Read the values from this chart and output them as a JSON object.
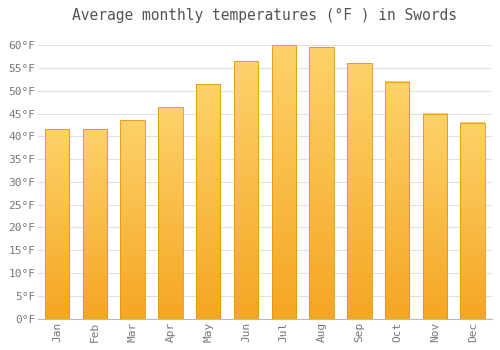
{
  "title": "Average monthly temperatures (°F ) in Swords",
  "months": [
    "Jan",
    "Feb",
    "Mar",
    "Apr",
    "May",
    "Jun",
    "Jul",
    "Aug",
    "Sep",
    "Oct",
    "Nov",
    "Dec"
  ],
  "values": [
    41.5,
    41.5,
    43.5,
    46.5,
    51.5,
    56.5,
    60.0,
    59.5,
    56.0,
    52.0,
    45.0,
    43.0
  ],
  "bar_color_top": "#FDD26A",
  "bar_color_bottom": "#F5A623",
  "bar_edge_color": "#E8950A",
  "background_color": "#FFFFFF",
  "grid_color": "#E0E0E0",
  "text_color": "#777777",
  "title_color": "#555555",
  "ylim": [
    0,
    63
  ],
  "yticks": [
    0,
    5,
    10,
    15,
    20,
    25,
    30,
    35,
    40,
    45,
    50,
    55,
    60
  ],
  "title_fontsize": 10.5,
  "tick_fontsize": 8,
  "font_family": "monospace",
  "bar_width": 0.65
}
